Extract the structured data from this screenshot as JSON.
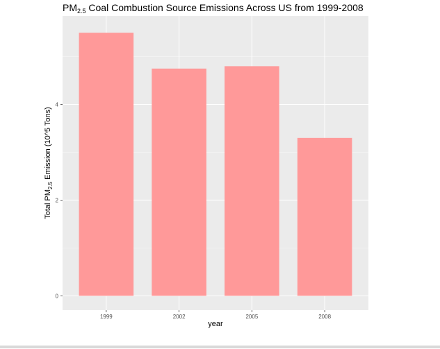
{
  "chart_data": {
    "type": "bar",
    "title_parts": {
      "prefix": "PM",
      "subscript": "2.5",
      "suffix": " Coal Combustion Source Emissions Across US from 1999-2008"
    },
    "xlabel": "year",
    "ylabel_parts": {
      "prefix": "Total PM",
      "subscript": "2.5",
      "suffix": " Emission (10^5 Tons)"
    },
    "categories": [
      "1999",
      "2002",
      "2005",
      "2008"
    ],
    "values": [
      5.5,
      4.75,
      4.8,
      3.3
    ],
    "ylim": [
      -0.3,
      5.85
    ],
    "y_ticks": [
      0,
      2,
      4
    ],
    "y_minor_ticks": [
      1,
      3,
      5
    ],
    "grid": true,
    "legend": "none",
    "bar_fill": "#ff9999",
    "panel_background": "#ebebeb",
    "grid_color": "#ffffff"
  }
}
